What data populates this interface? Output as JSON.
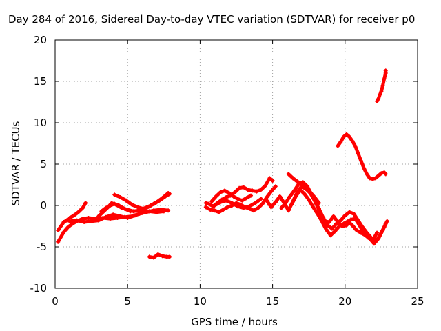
{
  "chart_data": {
    "type": "scatter",
    "title": "Day 284 of 2016, Sidereal Day-to-day VTEC variation (SDTVAR) for receiver p0",
    "xlabel": "GPS time / hours",
    "ylabel": "SDTVAR / TECUs",
    "xlim": [
      0,
      25
    ],
    "ylim": [
      -10,
      20
    ],
    "xticks": [
      "0",
      "5",
      "10",
      "15",
      "20",
      "25"
    ],
    "yticks": [
      "-10",
      "-5",
      "0",
      "5",
      "10",
      "15",
      "20"
    ],
    "grid": true,
    "color": "#ff0000",
    "series": [
      {
        "values": [
          [
            0.2,
            -3.0
          ],
          [
            0.4,
            -2.5
          ],
          [
            0.6,
            -2.0
          ],
          [
            0.8,
            -1.8
          ],
          [
            1.0,
            -1.5
          ],
          [
            1.3,
            -1.2
          ],
          [
            1.6,
            -0.8
          ],
          [
            1.9,
            -0.3
          ],
          [
            2.1,
            0.3
          ]
        ]
      },
      {
        "values": [
          [
            0.2,
            -4.4
          ],
          [
            0.4,
            -3.8
          ],
          [
            0.6,
            -3.2
          ],
          [
            0.9,
            -2.6
          ],
          [
            1.2,
            -2.2
          ],
          [
            1.5,
            -1.9
          ],
          [
            1.9,
            -1.6
          ],
          [
            2.3,
            -1.5
          ],
          [
            2.8,
            -1.6
          ],
          [
            3.3,
            -1.5
          ],
          [
            3.8,
            -1.6
          ],
          [
            4.3,
            -1.5
          ],
          [
            4.8,
            -1.4
          ],
          [
            5.3,
            -1.3
          ],
          [
            5.8,
            -1.0
          ],
          [
            6.3,
            -0.8
          ],
          [
            6.8,
            -0.6
          ],
          [
            7.3,
            -0.5
          ],
          [
            7.8,
            -0.6
          ]
        ]
      },
      {
        "values": [
          [
            1.0,
            -1.9
          ],
          [
            1.5,
            -1.8
          ],
          [
            2.0,
            -2.0
          ],
          [
            2.5,
            -1.9
          ],
          [
            3.0,
            -1.8
          ],
          [
            3.5,
            -1.4
          ],
          [
            4.0,
            -1.1
          ],
          [
            4.5,
            -1.3
          ],
          [
            5.0,
            -1.5
          ],
          [
            5.5,
            -1.2
          ],
          [
            6.0,
            -0.9
          ],
          [
            6.5,
            -0.7
          ],
          [
            7.0,
            -0.8
          ],
          [
            7.5,
            -0.7
          ]
        ]
      },
      {
        "values": [
          [
            3.0,
            -1.3
          ],
          [
            3.3,
            -0.8
          ],
          [
            3.6,
            -0.3
          ],
          [
            3.9,
            0.3
          ],
          [
            4.2,
            0.1
          ],
          [
            4.6,
            -0.3
          ],
          [
            5.0,
            -0.5
          ],
          [
            5.4,
            -0.7
          ],
          [
            5.8,
            -0.6
          ],
          [
            6.2,
            -0.5
          ]
        ]
      },
      {
        "values": [
          [
            3.2,
            -0.7
          ],
          [
            3.5,
            -0.3
          ],
          [
            3.8,
            0.0
          ],
          [
            4.1,
            0.2
          ],
          [
            4.4,
            0.0
          ],
          [
            4.8,
            -0.4
          ],
          [
            5.2,
            -0.7
          ]
        ]
      },
      {
        "values": [
          [
            4.1,
            1.3
          ],
          [
            4.5,
            1.0
          ],
          [
            4.9,
            0.6
          ],
          [
            5.3,
            0.1
          ],
          [
            5.7,
            -0.2
          ],
          [
            6.1,
            -0.4
          ]
        ]
      },
      {
        "values": [
          [
            5.8,
            -0.5
          ],
          [
            6.2,
            -0.3
          ],
          [
            6.6,
            0.0
          ],
          [
            7.0,
            0.4
          ],
          [
            7.4,
            0.9
          ],
          [
            7.8,
            1.5
          ]
        ]
      },
      {
        "values": [
          [
            6.4,
            -0.2
          ],
          [
            6.8,
            0.2
          ],
          [
            7.2,
            0.6
          ],
          [
            7.6,
            1.1
          ],
          [
            7.9,
            1.4
          ]
        ]
      },
      {
        "values": [
          [
            6.5,
            -6.2
          ],
          [
            6.8,
            -6.3
          ],
          [
            7.1,
            -5.9
          ],
          [
            7.4,
            -6.1
          ],
          [
            7.7,
            -6.2
          ],
          [
            7.9,
            -6.2
          ]
        ]
      },
      {
        "values": [
          [
            10.4,
            0.3
          ],
          [
            10.6,
            0.2
          ],
          [
            10.9,
            -0.1
          ],
          [
            11.2,
            0.3
          ],
          [
            11.5,
            0.7
          ],
          [
            11.8,
            1.0
          ],
          [
            12.1,
            1.2
          ],
          [
            12.4,
            1.6
          ],
          [
            12.7,
            2.1
          ],
          [
            13.0,
            2.2
          ],
          [
            13.3,
            1.9
          ],
          [
            13.6,
            1.8
          ],
          [
            13.9,
            1.7
          ],
          [
            14.2,
            1.9
          ],
          [
            14.5,
            2.4
          ],
          [
            14.8,
            3.3
          ],
          [
            15.0,
            3.0
          ]
        ]
      },
      {
        "values": [
          [
            10.4,
            -0.2
          ],
          [
            10.7,
            -0.5
          ],
          [
            11.0,
            -0.6
          ],
          [
            11.3,
            -0.8
          ],
          [
            11.6,
            -0.5
          ],
          [
            11.9,
            -0.2
          ],
          [
            12.2,
            0.0
          ],
          [
            12.5,
            0.3
          ],
          [
            12.8,
            0.1
          ],
          [
            13.1,
            -0.2
          ],
          [
            13.4,
            -0.4
          ],
          [
            13.7,
            -0.6
          ],
          [
            14.0,
            -0.3
          ],
          [
            14.3,
            0.2
          ],
          [
            14.6,
            1.0
          ],
          [
            14.9,
            1.7
          ],
          [
            15.2,
            2.3
          ]
        ]
      },
      {
        "values": [
          [
            10.8,
            0.5
          ],
          [
            11.1,
            1.1
          ],
          [
            11.4,
            1.6
          ],
          [
            11.7,
            1.8
          ],
          [
            12.0,
            1.5
          ],
          [
            12.3,
            1.1
          ],
          [
            12.6,
            0.8
          ],
          [
            12.9,
            0.6
          ],
          [
            13.2,
            0.9
          ],
          [
            13.5,
            1.2
          ]
        ]
      },
      {
        "values": [
          [
            11.0,
            0.0
          ],
          [
            11.4,
            0.4
          ],
          [
            11.8,
            0.6
          ],
          [
            12.2,
            0.3
          ],
          [
            12.6,
            -0.1
          ],
          [
            13.0,
            -0.3
          ],
          [
            13.4,
            -0.1
          ],
          [
            13.8,
            0.3
          ],
          [
            14.2,
            0.8
          ]
        ]
      },
      {
        "values": [
          [
            14.6,
            0.6
          ],
          [
            14.9,
            -0.2
          ],
          [
            15.2,
            0.4
          ],
          [
            15.5,
            1.1
          ],
          [
            15.8,
            0.3
          ],
          [
            16.1,
            -0.6
          ],
          [
            16.4,
            0.5
          ],
          [
            16.7,
            1.6
          ],
          [
            17.0,
            2.3
          ],
          [
            17.3,
            2.0
          ],
          [
            17.6,
            1.5
          ],
          [
            17.9,
            0.6
          ],
          [
            18.2,
            -0.4
          ],
          [
            18.5,
            -1.5
          ],
          [
            18.8,
            -2.4
          ],
          [
            19.1,
            -2.8
          ],
          [
            19.4,
            -2.2
          ],
          [
            19.7,
            -1.8
          ],
          [
            20.0,
            -1.2
          ],
          [
            20.3,
            -0.8
          ],
          [
            20.6,
            -1.0
          ],
          [
            20.9,
            -1.8
          ],
          [
            21.2,
            -2.6
          ],
          [
            21.5,
            -3.3
          ],
          [
            21.8,
            -3.9
          ],
          [
            22.1,
            -4.4
          ],
          [
            22.4,
            -3.6
          ],
          [
            22.7,
            -2.6
          ],
          [
            22.9,
            -1.9
          ]
        ]
      },
      {
        "values": [
          [
            15.6,
            -0.3
          ],
          [
            15.9,
            0.3
          ],
          [
            16.2,
            1.1
          ],
          [
            16.5,
            1.8
          ],
          [
            16.8,
            2.6
          ],
          [
            17.1,
            2.8
          ],
          [
            17.4,
            2.3
          ],
          [
            17.7,
            1.3
          ],
          [
            18.0,
            0.2
          ],
          [
            18.3,
            -0.9
          ],
          [
            18.6,
            -1.9
          ],
          [
            18.9,
            -2.0
          ],
          [
            19.2,
            -1.3
          ],
          [
            19.5,
            -2.0
          ],
          [
            19.8,
            -2.5
          ],
          [
            20.1,
            -2.4
          ],
          [
            20.4,
            -1.7
          ],
          [
            20.7,
            -1.6
          ],
          [
            21.0,
            -2.4
          ],
          [
            21.3,
            -3.4
          ],
          [
            21.6,
            -3.9
          ],
          [
            21.9,
            -4.2
          ],
          [
            22.2,
            -3.3
          ]
        ]
      },
      {
        "values": [
          [
            16.1,
            3.8
          ],
          [
            16.4,
            3.3
          ],
          [
            16.7,
            2.9
          ],
          [
            17.0,
            2.6
          ],
          [
            17.3,
            2.1
          ],
          [
            17.6,
            1.6
          ],
          [
            17.9,
            1.0
          ],
          [
            18.2,
            0.3
          ]
        ]
      },
      {
        "values": [
          [
            16.3,
            0.1
          ],
          [
            16.6,
            1.1
          ],
          [
            16.9,
            1.9
          ],
          [
            17.2,
            1.4
          ],
          [
            17.5,
            0.7
          ],
          [
            17.8,
            -0.2
          ],
          [
            18.1,
            -1.0
          ],
          [
            18.4,
            -1.9
          ],
          [
            18.7,
            -2.9
          ],
          [
            19.0,
            -3.6
          ],
          [
            19.3,
            -3.1
          ],
          [
            19.6,
            -2.5
          ],
          [
            19.9,
            -2.2
          ],
          [
            20.2,
            -1.9
          ],
          [
            20.5,
            -2.4
          ],
          [
            20.8,
            -3.0
          ],
          [
            21.1,
            -3.3
          ],
          [
            21.4,
            -3.6
          ],
          [
            21.7,
            -4.0
          ],
          [
            22.0,
            -4.6
          ],
          [
            22.3,
            -4.0
          ],
          [
            22.6,
            -3.0
          ],
          [
            22.8,
            -2.2
          ]
        ]
      },
      {
        "values": [
          [
            19.5,
            7.2
          ],
          [
            19.7,
            7.7
          ],
          [
            19.9,
            8.3
          ],
          [
            20.1,
            8.6
          ],
          [
            20.3,
            8.3
          ],
          [
            20.5,
            7.8
          ],
          [
            20.7,
            7.2
          ],
          [
            20.9,
            6.3
          ],
          [
            21.1,
            5.4
          ],
          [
            21.3,
            4.5
          ],
          [
            21.5,
            3.8
          ],
          [
            21.7,
            3.3
          ],
          [
            21.9,
            3.2
          ],
          [
            22.1,
            3.3
          ],
          [
            22.3,
            3.6
          ],
          [
            22.5,
            3.9
          ],
          [
            22.7,
            4.0
          ],
          [
            22.8,
            3.8
          ]
        ]
      },
      {
        "values": [
          [
            22.2,
            12.6
          ],
          [
            22.3,
            12.9
          ],
          [
            22.4,
            13.4
          ],
          [
            22.5,
            13.8
          ],
          [
            22.6,
            14.5
          ],
          [
            22.7,
            15.3
          ],
          [
            22.8,
            16.0
          ],
          [
            22.8,
            16.3
          ]
        ]
      }
    ]
  }
}
